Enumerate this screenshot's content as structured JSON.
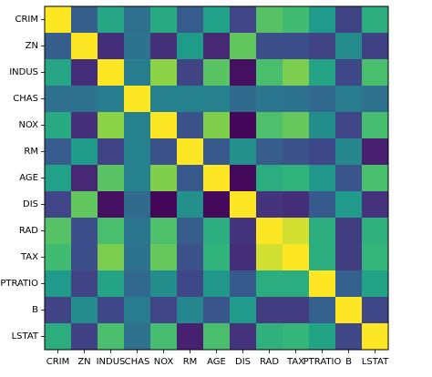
{
  "chart_data": {
    "type": "heatmap",
    "title": "",
    "xlabel": "",
    "ylabel": "",
    "x_categories": [
      "CRIM",
      "ZN",
      "INDUS",
      "CHAS",
      "NOX",
      "RM",
      "AGE",
      "DIS",
      "RAD",
      "TAX",
      "PTRATIO",
      "B",
      "LSTAT"
    ],
    "y_categories": [
      "CRIM",
      "ZN",
      "INDUS",
      "CHAS",
      "NOX",
      "RM",
      "AGE",
      "DIS",
      "RAD",
      "TAX",
      "PTRATIO",
      "B",
      "LSTAT"
    ],
    "colormap": "viridis",
    "value_range": [
      -0.8,
      1.0
    ],
    "grid": false,
    "colorbar": false,
    "values": [
      [
        1.0,
        -0.2,
        0.4,
        -0.06,
        0.42,
        -0.22,
        0.35,
        -0.38,
        0.63,
        0.58,
        0.29,
        -0.39,
        0.46
      ],
      [
        -0.2,
        1.0,
        -0.53,
        -0.04,
        -0.52,
        0.31,
        -0.57,
        0.66,
        -0.31,
        -0.31,
        -0.39,
        0.18,
        -0.41
      ],
      [
        0.4,
        -0.53,
        1.0,
        0.06,
        0.76,
        -0.39,
        0.64,
        -0.71,
        0.6,
        0.72,
        0.38,
        -0.36,
        0.6
      ],
      [
        -0.06,
        -0.04,
        0.06,
        1.0,
        0.09,
        0.09,
        0.09,
        -0.1,
        -0.01,
        -0.04,
        -0.12,
        0.05,
        -0.05
      ],
      [
        0.42,
        -0.52,
        0.76,
        0.09,
        1.0,
        -0.3,
        0.73,
        -0.77,
        0.61,
        0.67,
        0.19,
        -0.38,
        0.59
      ],
      [
        -0.22,
        0.31,
        -0.39,
        0.09,
        -0.3,
        1.0,
        -0.24,
        0.21,
        -0.21,
        -0.29,
        -0.36,
        0.13,
        -0.61
      ],
      [
        0.35,
        -0.57,
        0.64,
        0.09,
        0.73,
        -0.24,
        1.0,
        -0.75,
        0.46,
        0.51,
        0.26,
        -0.27,
        0.6
      ],
      [
        -0.38,
        0.66,
        -0.71,
        -0.1,
        -0.77,
        0.21,
        -0.75,
        1.0,
        -0.49,
        -0.53,
        -0.23,
        0.29,
        -0.5
      ],
      [
        0.63,
        -0.31,
        0.6,
        -0.01,
        0.61,
        -0.21,
        0.46,
        -0.49,
        1.0,
        0.91,
        0.46,
        -0.44,
        0.49
      ],
      [
        0.58,
        -0.31,
        0.72,
        -0.04,
        0.67,
        -0.29,
        0.51,
        -0.53,
        0.91,
        1.0,
        0.46,
        -0.44,
        0.54
      ],
      [
        0.29,
        -0.39,
        0.38,
        -0.12,
        0.19,
        -0.36,
        0.26,
        -0.23,
        0.46,
        0.46,
        1.0,
        -0.18,
        0.37
      ],
      [
        -0.39,
        0.18,
        -0.36,
        0.05,
        -0.38,
        0.13,
        -0.27,
        0.29,
        -0.44,
        -0.44,
        -0.18,
        1.0,
        -0.37
      ],
      [
        0.46,
        -0.41,
        0.6,
        -0.05,
        0.59,
        -0.61,
        0.6,
        -0.5,
        0.49,
        0.54,
        0.37,
        -0.37,
        1.0
      ]
    ]
  }
}
